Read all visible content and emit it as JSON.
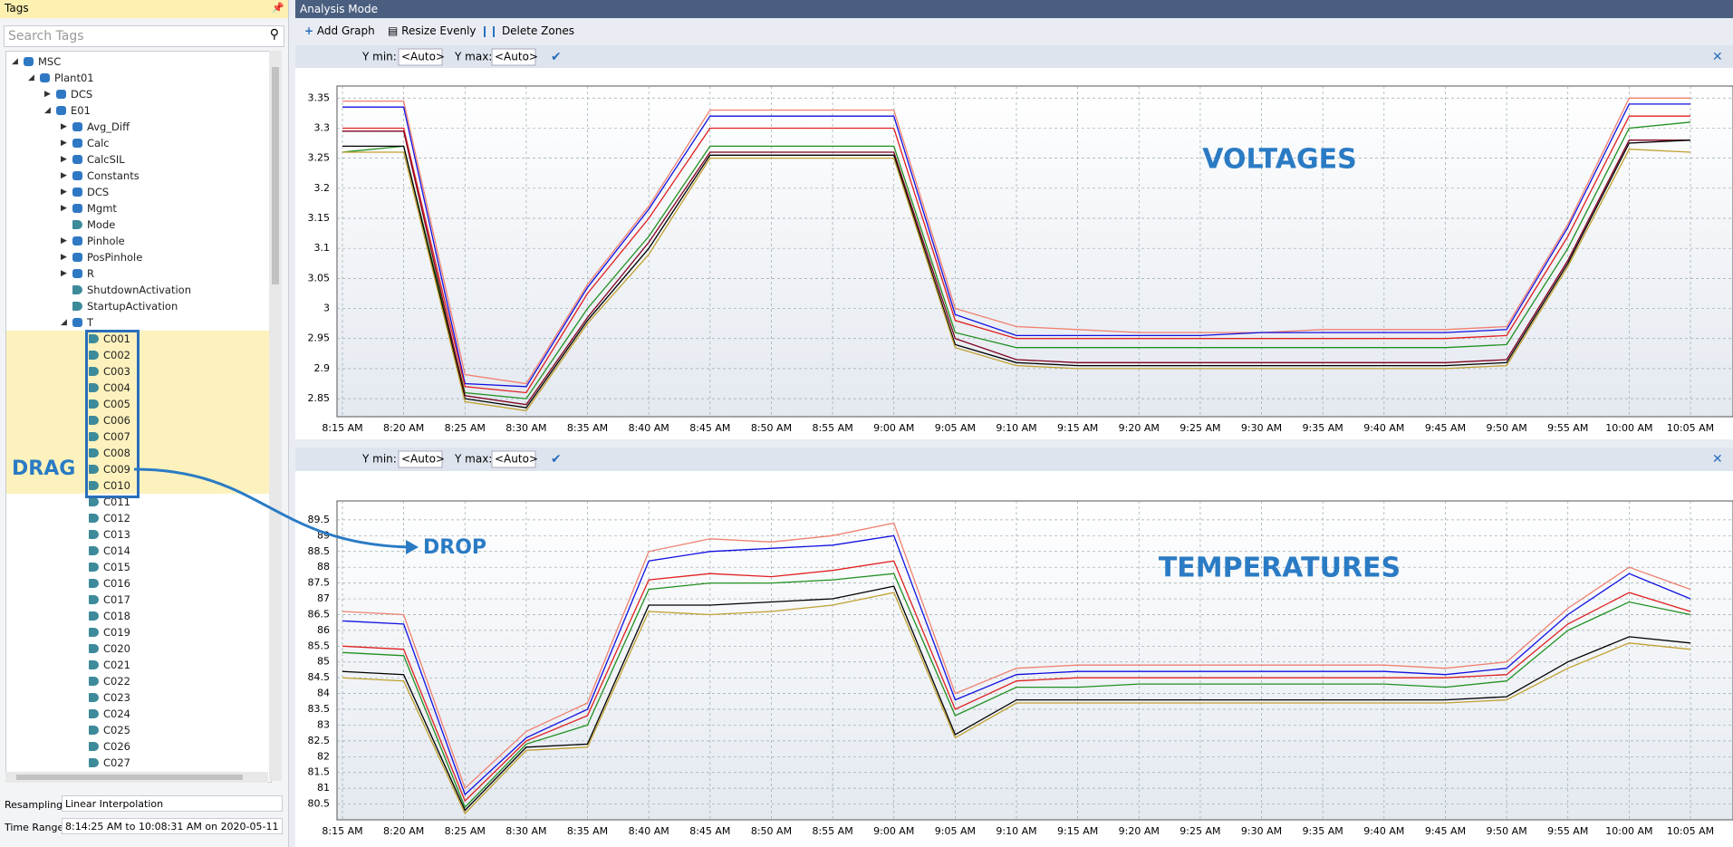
{
  "header": {
    "title": "Analysis Mode"
  },
  "toolbar": {
    "add_graph": "Add Graph",
    "resize_evenly": "Resize Evenly",
    "delete_zones": "Delete Zones"
  },
  "tags_panel": {
    "title": "Tags",
    "search_placeholder": "Search Tags",
    "tree": [
      {
        "label": "MSC",
        "expanded": true,
        "children": [
          {
            "label": "Plant01",
            "expanded": true,
            "children": [
              {
                "label": "DCS",
                "expanded": false
              },
              {
                "label": "E01",
                "expanded": true,
                "children": [
                  {
                    "label": "Avg_Diff",
                    "expanded": false
                  },
                  {
                    "label": "Calc",
                    "expanded": false
                  },
                  {
                    "label": "CalcSIL",
                    "expanded": false
                  },
                  {
                    "label": "Constants",
                    "expanded": false
                  },
                  {
                    "label": "DCS",
                    "expanded": false
                  },
                  {
                    "label": "Mgmt",
                    "expanded": false
                  },
                  {
                    "label": "Mode"
                  },
                  {
                    "label": "Pinhole",
                    "expanded": false
                  },
                  {
                    "label": "PosPinhole",
                    "expanded": false
                  },
                  {
                    "label": "R",
                    "expanded": false
                  },
                  {
                    "label": "ShutdownActivation"
                  },
                  {
                    "label": "StartupActivation"
                  },
                  {
                    "label": "T",
                    "expanded": true,
                    "children": [
                      {
                        "label": "C001",
                        "selected": true
                      },
                      {
                        "label": "C002",
                        "selected": true
                      },
                      {
                        "label": "C003",
                        "selected": true
                      },
                      {
                        "label": "C004",
                        "selected": true
                      },
                      {
                        "label": "C005",
                        "selected": true
                      },
                      {
                        "label": "C006",
                        "selected": true
                      },
                      {
                        "label": "C007",
                        "selected": true
                      },
                      {
                        "label": "C008",
                        "selected": true
                      },
                      {
                        "label": "C009",
                        "selected": true
                      },
                      {
                        "label": "C010",
                        "selected": true
                      },
                      {
                        "label": "C011"
                      },
                      {
                        "label": "C012"
                      },
                      {
                        "label": "C013"
                      },
                      {
                        "label": "C014"
                      },
                      {
                        "label": "C015"
                      },
                      {
                        "label": "C016"
                      },
                      {
                        "label": "C017"
                      },
                      {
                        "label": "C018"
                      },
                      {
                        "label": "C019"
                      },
                      {
                        "label": "C020"
                      },
                      {
                        "label": "C021"
                      },
                      {
                        "label": "C022"
                      },
                      {
                        "label": "C023"
                      },
                      {
                        "label": "C024"
                      },
                      {
                        "label": "C025"
                      },
                      {
                        "label": "C026"
                      },
                      {
                        "label": "C027"
                      }
                    ]
                  }
                ]
              }
            ]
          }
        ]
      }
    ],
    "resampling_label": "Resampling:",
    "resampling": "Linear Interpolation",
    "time_range_label": "Time Range:",
    "time_range": "8:14:25 AM to 10:08:31 AM on 2020-05-11"
  },
  "graph_toolbars": [
    {
      "y_min_label": "Y min:",
      "y_min": "<Auto>",
      "y_max_label": "Y max:",
      "y_max": "<Auto>"
    },
    {
      "y_min_label": "Y min:",
      "y_min": "<Auto>",
      "y_max_label": "Y max:",
      "y_max": "<Auto>"
    }
  ],
  "drag_drop": {
    "drag": "DRAG",
    "drop": "DROP"
  },
  "chart_data": [
    {
      "type": "line",
      "annotation": "VOLTAGES",
      "grid": true,
      "categories": [
        "8:15 AM",
        "8:20 AM",
        "8:25 AM",
        "8:30 AM",
        "8:35 AM",
        "8:40 AM",
        "8:45 AM",
        "8:50 AM",
        "8:55 AM",
        "9:00 AM",
        "9:05 AM",
        "9:10 AM",
        "9:15 AM",
        "9:20 AM",
        "9:25 AM",
        "9:30 AM",
        "9:35 AM",
        "9:40 AM",
        "9:45 AM",
        "9:50 AM",
        "9:55 AM",
        "10:00 AM",
        "10:05 AM"
      ],
      "ylim": [
        2.82,
        3.37
      ],
      "yticks": [
        2.85,
        2.9,
        2.95,
        3,
        3.05,
        3.1,
        3.15,
        3.2,
        3.25,
        3.3,
        3.35
      ],
      "series": [
        {
          "color": "#f08070",
          "values": [
            3.345,
            3.345,
            2.89,
            2.875,
            3.04,
            3.17,
            3.33,
            3.33,
            3.33,
            3.33,
            3.0,
            2.97,
            2.965,
            2.96,
            2.96,
            2.96,
            2.965,
            2.965,
            2.965,
            2.97,
            3.14,
            3.35,
            3.35
          ]
        },
        {
          "color": "#1010e0",
          "values": [
            3.335,
            3.335,
            2.875,
            2.87,
            3.035,
            3.165,
            3.32,
            3.32,
            3.32,
            3.32,
            2.99,
            2.955,
            2.955,
            2.955,
            2.955,
            2.96,
            2.96,
            2.96,
            2.96,
            2.965,
            3.135,
            3.34,
            3.34
          ]
        },
        {
          "color": "#e02020",
          "values": [
            3.3,
            3.3,
            2.87,
            2.86,
            3.025,
            3.15,
            3.3,
            3.3,
            3.3,
            3.3,
            2.98,
            2.95,
            2.95,
            2.95,
            2.95,
            2.95,
            2.95,
            2.95,
            2.95,
            2.955,
            3.12,
            3.32,
            3.32
          ]
        },
        {
          "color": "#209020",
          "values": [
            3.26,
            3.27,
            2.86,
            2.85,
            3.0,
            3.12,
            3.27,
            3.27,
            3.27,
            3.27,
            2.96,
            2.935,
            2.935,
            2.935,
            2.935,
            2.935,
            2.935,
            2.935,
            2.935,
            2.94,
            3.1,
            3.3,
            3.31
          ]
        },
        {
          "color": "#800020",
          "values": [
            3.295,
            3.295,
            2.855,
            2.84,
            2.985,
            3.11,
            3.26,
            3.26,
            3.26,
            3.26,
            2.95,
            2.915,
            2.91,
            2.91,
            2.91,
            2.91,
            2.91,
            2.91,
            2.91,
            2.915,
            3.08,
            3.28,
            3.28
          ]
        },
        {
          "color": "#000000",
          "values": [
            3.27,
            3.27,
            2.85,
            2.835,
            2.98,
            3.1,
            3.255,
            3.255,
            3.255,
            3.255,
            2.94,
            2.91,
            2.905,
            2.905,
            2.905,
            2.905,
            2.905,
            2.905,
            2.905,
            2.91,
            3.075,
            3.275,
            3.28
          ]
        },
        {
          "color": "#c0a030",
          "values": [
            3.26,
            3.26,
            2.845,
            2.83,
            2.975,
            3.09,
            3.25,
            3.25,
            3.25,
            3.25,
            2.935,
            2.905,
            2.9,
            2.9,
            2.9,
            2.9,
            2.9,
            2.9,
            2.9,
            2.905,
            3.07,
            3.265,
            3.26
          ]
        }
      ]
    },
    {
      "type": "line",
      "annotation": "TEMPERATURES",
      "grid": true,
      "categories": [
        "8:15 AM",
        "8:20 AM",
        "8:25 AM",
        "8:30 AM",
        "8:35 AM",
        "8:40 AM",
        "8:45 AM",
        "8:50 AM",
        "8:55 AM",
        "9:00 AM",
        "9:05 AM",
        "9:10 AM",
        "9:15 AM",
        "9:20 AM",
        "9:25 AM",
        "9:30 AM",
        "9:35 AM",
        "9:40 AM",
        "9:45 AM",
        "9:50 AM",
        "9:55 AM",
        "10:00 AM",
        "10:05 AM"
      ],
      "ylim": [
        80.0,
        90.1
      ],
      "yticks": [
        80.5,
        81,
        81.5,
        82,
        82.5,
        83,
        83.5,
        84,
        84.5,
        85,
        85.5,
        86,
        86.5,
        87,
        87.5,
        88,
        88.5,
        89,
        89.5
      ],
      "series": [
        {
          "color": "#f08070",
          "values": [
            86.6,
            86.5,
            81.0,
            82.8,
            83.7,
            88.5,
            88.9,
            88.8,
            89.0,
            89.4,
            84.0,
            84.8,
            84.9,
            84.9,
            84.9,
            84.9,
            84.9,
            84.9,
            84.8,
            85.0,
            86.7,
            88.0,
            87.3
          ]
        },
        {
          "color": "#1010e0",
          "values": [
            86.3,
            86.2,
            80.8,
            82.6,
            83.5,
            88.2,
            88.5,
            88.6,
            88.7,
            89.0,
            83.8,
            84.6,
            84.7,
            84.7,
            84.7,
            84.7,
            84.7,
            84.7,
            84.6,
            84.8,
            86.5,
            87.8,
            87.0
          ]
        },
        {
          "color": "#e02020",
          "values": [
            85.5,
            85.4,
            80.6,
            82.5,
            83.3,
            87.6,
            87.8,
            87.7,
            87.9,
            88.2,
            83.5,
            84.4,
            84.5,
            84.5,
            84.5,
            84.5,
            84.5,
            84.5,
            84.5,
            84.6,
            86.2,
            87.2,
            86.6
          ]
        },
        {
          "color": "#209020",
          "values": [
            85.3,
            85.2,
            80.4,
            82.4,
            83.0,
            87.3,
            87.5,
            87.5,
            87.6,
            87.8,
            83.3,
            84.2,
            84.2,
            84.3,
            84.3,
            84.3,
            84.3,
            84.3,
            84.2,
            84.4,
            86.0,
            86.9,
            86.5
          ]
        },
        {
          "color": "#000000",
          "values": [
            84.7,
            84.6,
            80.3,
            82.3,
            82.4,
            86.8,
            86.8,
            86.9,
            87.0,
            87.4,
            82.7,
            83.8,
            83.8,
            83.8,
            83.8,
            83.8,
            83.8,
            83.8,
            83.8,
            83.9,
            85.0,
            85.8,
            85.6
          ]
        },
        {
          "color": "#c0a030",
          "values": [
            84.5,
            84.4,
            80.2,
            82.2,
            82.3,
            86.6,
            86.5,
            86.6,
            86.8,
            87.2,
            82.6,
            83.7,
            83.7,
            83.7,
            83.7,
            83.7,
            83.7,
            83.7,
            83.7,
            83.8,
            84.8,
            85.6,
            85.4
          ]
        }
      ]
    }
  ]
}
